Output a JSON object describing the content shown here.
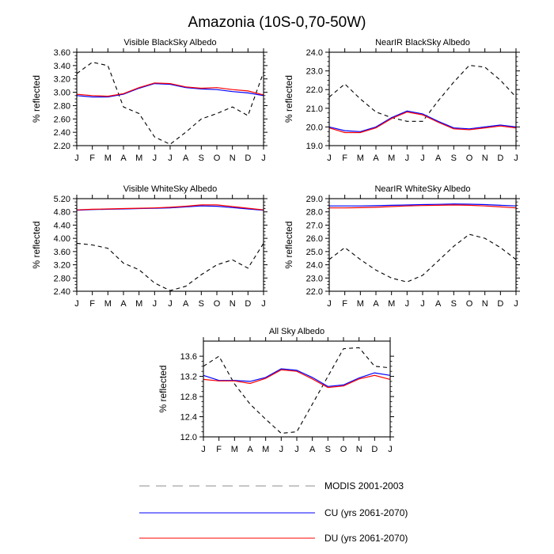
{
  "figure": {
    "title": "Amazonia (10S-0,70-50W)"
  },
  "legend": {
    "placement": "bottom",
    "entries": [
      {
        "name": "MODIS 2001-2003",
        "color": "#000000",
        "dash": true
      },
      {
        "name": "CU (yrs 2061-2070)",
        "color": "#0000ff",
        "dash": false
      },
      {
        "name": "DU (yrs 2061-2070)",
        "color": "#ff0000",
        "dash": false
      }
    ]
  },
  "series_colors": {
    "modis": "#000000",
    "cu": "#0000ff",
    "du": "#ff0000"
  },
  "chart_data": [
    {
      "type": "line",
      "title": "Visible BlackSky Albedo",
      "ylabel": "% reflected",
      "xlabel": "",
      "categories": [
        "J",
        "F",
        "M",
        "A",
        "M",
        "J",
        "J",
        "A",
        "S",
        "O",
        "N",
        "D",
        "J"
      ],
      "ylim": [
        2.2,
        3.6
      ],
      "yticks": [
        "2.20",
        "2.40",
        "2.60",
        "2.80",
        "3.00",
        "3.20",
        "3.40",
        "3.60"
      ],
      "series": [
        {
          "key": "modis",
          "values": [
            3.28,
            3.45,
            3.4,
            2.78,
            2.68,
            2.33,
            2.22,
            2.4,
            2.6,
            2.68,
            2.78,
            2.65,
            3.3
          ]
        },
        {
          "key": "cu",
          "values": [
            2.95,
            2.93,
            2.93,
            2.97,
            3.06,
            3.13,
            3.12,
            3.07,
            3.05,
            3.04,
            3.01,
            2.99,
            2.95
          ]
        },
        {
          "key": "du",
          "values": [
            2.97,
            2.95,
            2.94,
            2.98,
            3.07,
            3.14,
            3.13,
            3.08,
            3.06,
            3.07,
            3.04,
            3.02,
            2.96
          ]
        }
      ]
    },
    {
      "type": "line",
      "title": "NearIR BlackSky Albedo",
      "ylabel": "% reflected",
      "xlabel": "",
      "categories": [
        "J",
        "F",
        "M",
        "A",
        "M",
        "J",
        "J",
        "A",
        "S",
        "O",
        "N",
        "D",
        "J"
      ],
      "ylim": [
        19.0,
        24.0
      ],
      "yticks": [
        "19.0",
        "20.0",
        "21.0",
        "22.0",
        "23.0",
        "24.0"
      ],
      "series": [
        {
          "key": "modis",
          "values": [
            21.6,
            22.3,
            21.5,
            20.8,
            20.5,
            20.3,
            20.3,
            21.4,
            22.4,
            23.3,
            23.2,
            22.5,
            21.6
          ]
        },
        {
          "key": "cu",
          "values": [
            20.0,
            19.8,
            19.75,
            20.0,
            20.5,
            20.85,
            20.7,
            20.3,
            19.95,
            19.9,
            20.0,
            20.1,
            20.0
          ]
        },
        {
          "key": "du",
          "values": [
            19.95,
            19.7,
            19.7,
            19.95,
            20.45,
            20.8,
            20.65,
            20.25,
            19.9,
            19.85,
            19.95,
            20.05,
            19.95
          ]
        }
      ]
    },
    {
      "type": "line",
      "title": "Visible WhiteSky Albedo",
      "ylabel": "% reflected",
      "xlabel": "",
      "categories": [
        "J",
        "F",
        "M",
        "A",
        "M",
        "J",
        "J",
        "A",
        "S",
        "O",
        "N",
        "D",
        "J"
      ],
      "ylim": [
        2.4,
        5.2
      ],
      "yticks": [
        "2.40",
        "2.80",
        "3.20",
        "3.60",
        "4.00",
        "4.40",
        "4.80",
        "5.20"
      ],
      "series": [
        {
          "key": "modis",
          "values": [
            3.85,
            3.8,
            3.7,
            3.25,
            3.05,
            2.65,
            2.42,
            2.55,
            2.9,
            3.2,
            3.35,
            3.1,
            3.85
          ]
        },
        {
          "key": "cu",
          "values": [
            4.85,
            4.87,
            4.88,
            4.89,
            4.9,
            4.91,
            4.92,
            4.95,
            4.98,
            4.97,
            4.93,
            4.89,
            4.85
          ]
        },
        {
          "key": "du",
          "values": [
            4.86,
            4.88,
            4.89,
            4.9,
            4.91,
            4.92,
            4.94,
            4.97,
            5.01,
            5.01,
            4.96,
            4.91,
            4.86
          ]
        }
      ]
    },
    {
      "type": "line",
      "title": "NearIR WhiteSky Albedo",
      "ylabel": "% reflected",
      "xlabel": "",
      "categories": [
        "J",
        "F",
        "M",
        "A",
        "M",
        "J",
        "J",
        "A",
        "S",
        "O",
        "N",
        "D",
        "J"
      ],
      "ylim": [
        22.0,
        29.0
      ],
      "yticks": [
        "22.0",
        "23.0",
        "24.0",
        "25.0",
        "26.0",
        "27.0",
        "28.0",
        "29.0"
      ],
      "series": [
        {
          "key": "modis",
          "values": [
            24.4,
            25.3,
            24.4,
            23.6,
            23.0,
            22.7,
            23.2,
            24.3,
            25.4,
            26.3,
            26.0,
            25.3,
            24.4
          ]
        },
        {
          "key": "cu",
          "values": [
            28.45,
            28.45,
            28.45,
            28.47,
            28.5,
            28.52,
            28.55,
            28.57,
            28.6,
            28.58,
            28.55,
            28.5,
            28.45
          ]
        },
        {
          "key": "du",
          "values": [
            28.3,
            28.3,
            28.32,
            28.35,
            28.4,
            28.45,
            28.48,
            28.5,
            28.52,
            28.5,
            28.45,
            28.38,
            28.3
          ]
        }
      ]
    },
    {
      "type": "line",
      "title": "All Sky Albedo",
      "ylabel": "% reflected",
      "xlabel": "",
      "categories": [
        "J",
        "F",
        "M",
        "A",
        "M",
        "J",
        "J",
        "A",
        "S",
        "O",
        "N",
        "D",
        "J"
      ],
      "ylim": [
        12.0,
        13.9
      ],
      "yticks": [
        "12.0",
        "12.4",
        "12.8",
        "13.2",
        "13.6"
      ],
      "series": [
        {
          "key": "modis",
          "values": [
            13.4,
            13.6,
            13.05,
            12.65,
            12.35,
            12.07,
            12.1,
            12.65,
            13.2,
            13.75,
            13.77,
            13.4,
            13.37
          ]
        },
        {
          "key": "cu",
          "values": [
            13.22,
            13.12,
            13.12,
            13.1,
            13.18,
            13.35,
            13.32,
            13.18,
            13.0,
            13.03,
            13.17,
            13.27,
            13.22
          ]
        },
        {
          "key": "du",
          "values": [
            13.14,
            13.11,
            13.11,
            13.06,
            13.16,
            13.33,
            13.3,
            13.15,
            12.98,
            13.01,
            13.15,
            13.22,
            13.14
          ]
        }
      ]
    }
  ]
}
